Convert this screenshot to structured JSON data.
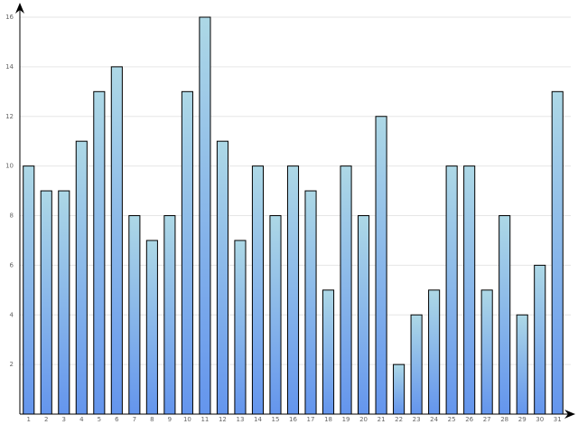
{
  "chart_data": {
    "type": "bar",
    "title": "",
    "xlabel": "",
    "ylabel": "",
    "categories": [
      "1",
      "2",
      "3",
      "4",
      "5",
      "6",
      "7",
      "8",
      "9",
      "10",
      "11",
      "12",
      "13",
      "14",
      "15",
      "16",
      "17",
      "18",
      "19",
      "20",
      "21",
      "22",
      "23",
      "24",
      "25",
      "26",
      "27",
      "28",
      "29",
      "30",
      "31"
    ],
    "values": [
      10,
      9,
      9,
      11,
      13,
      14,
      8,
      7,
      8,
      13,
      16,
      11,
      7,
      10,
      8,
      10,
      9,
      5,
      10,
      8,
      12,
      2,
      4,
      5,
      10,
      10,
      5,
      8,
      4,
      6,
      13
    ],
    "ylim": [
      0,
      16
    ],
    "yticks": [
      2,
      4,
      6,
      8,
      10,
      12,
      14,
      16
    ],
    "ytick_labels": [
      "2",
      "4",
      "6",
      "8",
      "10",
      "12",
      "14",
      "16"
    ],
    "grid": true,
    "legend": "none",
    "colors": {
      "bar_top": "#add8e6",
      "bar_bottom": "#6495ed",
      "bar_outline": "#000000",
      "grid": "#e6e6e6",
      "axis": "#000000",
      "tick_text": "#666666"
    }
  }
}
